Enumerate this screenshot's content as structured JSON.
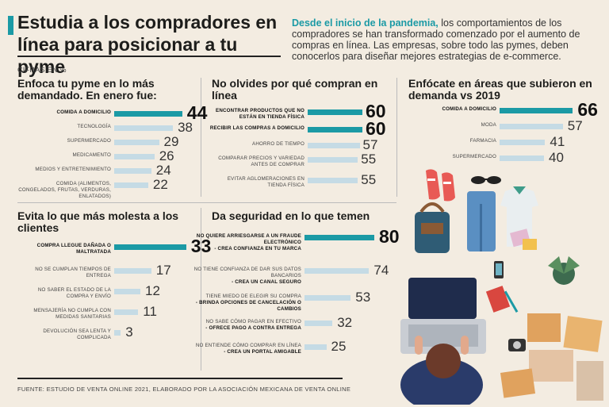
{
  "title": "Estudia a los compradores en línea para posicionar a tu pyme",
  "intro": {
    "highlight": "Desde el inicio de la pandemia,",
    "text": " los comportamientos de los compradores se han transformado comenzado por el aumento de compras en línea. Las empresas, sobre todo las pymes, deben conocerlos para diseñar mejores estrategias de e-commerce."
  },
  "units_note": "CIFRAS EN %",
  "source": "FUENTE: ESTUDIO DE VENTA ONLINE 2021, ELABORADO POR LA ASOCIACIÓN MEXICANA DE VENTA ONLINE",
  "colors": {
    "accent": "#1b9aa5",
    "bar": "#c5dbe5",
    "background": "#f3ece1"
  },
  "chart_data": [
    {
      "type": "bar",
      "title": "Enfoca tu pyme en lo más demandado. En enero fue:",
      "categories": [
        "COMIDA A DOMICILIO",
        "TECNOLOGÍA",
        "SUPERMERCADO",
        "MEDICAMENTO",
        "MEDIOS Y ENTRETENIMIENTO",
        "COMIDA (ALIMENTOS, CONGELADOS, FRUTAS, VERDURAS, ENLATADOS)"
      ],
      "values": [
        44,
        38,
        29,
        26,
        24,
        22
      ],
      "highlight_index": 0,
      "ylim": [
        0,
        50
      ]
    },
    {
      "type": "bar",
      "title": "No olvides por qué compran en línea",
      "categories": [
        "ENCONTRAR PRODUCTOS QUE NO ESTÁN EN TIENDA FÍSICA",
        "RECIBIR LAS COMPRAS A DOMICILIO",
        "AHORRO DE TIEMPO",
        "COMPARAR PRECIOS Y VARIEDAD ANTES DE COMPRAR",
        "EVITAR AGLOMERACIONES EN TIENDA FÍSICA"
      ],
      "values": [
        60,
        60,
        57,
        55,
        55
      ],
      "highlight_index": 1,
      "ylim": [
        0,
        70
      ]
    },
    {
      "type": "bar",
      "title": "Enfócate en áreas que subieron en demanda vs 2019",
      "categories": [
        "COMIDA A DOMICILIO",
        "MODA",
        "FARMACIA",
        "SUPERMERCADO"
      ],
      "values": [
        66,
        57,
        41,
        40
      ],
      "highlight_index": 0,
      "ylim": [
        0,
        70
      ]
    },
    {
      "type": "bar",
      "title": "Evita lo que más molesta a los clientes",
      "categories": [
        "COMPRA LLEGUE DAÑADA O MALTRATADA",
        "NO SE CUMPLAN TIEMPOS DE ENTREGA",
        "NO SABER EL ESTADO DE LA COMPRA Y ENVÍO",
        "MENSAJERÍA NO CUMPLA CON MEDIDAS SANITARIAS",
        "DEVOLUCIÓN SEA LENTA Y COMPLICADA"
      ],
      "values": [
        33,
        17,
        12,
        11,
        3
      ],
      "highlight_index": 0,
      "ylim": [
        0,
        40
      ]
    },
    {
      "type": "bar",
      "title": "Da seguridad en lo que temen",
      "categories": [
        "NO QUIERE ARRIESGARSE A UN FRAUDE ELECTRÓNICO",
        "NO TIENE CONFIANZA DE DAR SUS DATOS BANCARIOS",
        "TIENE MIEDO DE ELEGIR SU COMPRA",
        "NO SABE CÓMO PAGAR EN EFECTIVO",
        "NO ENTIENDE CÓMO COMPRAR EN LÍNEA"
      ],
      "advice": [
        "- CREA CONFIANZA EN TU MARCA",
        "- CREA UN CANAL SEGURO",
        "- BRINDA OPCIONES DE CANCELACIÓN O CAMBIOS",
        "- OFRECE PAGO A CONTRA ENTREGA",
        "- CREA UN PORTAL AMIGABLE"
      ],
      "values": [
        80,
        74,
        53,
        32,
        25
      ],
      "highlight_index": 0,
      "ylim": [
        0,
        90
      ]
    }
  ]
}
